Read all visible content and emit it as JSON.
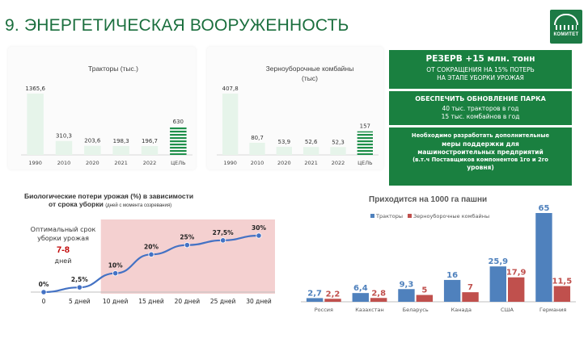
{
  "header": {
    "title": "9. ЭНЕРГЕТИЧЕСКАЯ ВООРУЖЕННОСТЬ",
    "logo_text": "КОМИТЕТ"
  },
  "side_boxes": {
    "box1": {
      "title": "РЕЗЕРВ +15 млн. тонн",
      "line1": "ОТ СОКРАЩЕНИЯ НА 15% ПОТЕРЬ",
      "line2": "НА ЭТАПЕ УБОРКИ УРОЖАЯ"
    },
    "box2": {
      "title": "ОБЕСПЕЧИТЬ ОБНОВЛЕНИЕ ПАРКА",
      "line1": "40 тыс. тракторов в год",
      "line2": "15 тыс. комбайнов в год"
    },
    "box3": {
      "line1": "Необходимо разработать дополнительные",
      "line2": "меры поддержки для",
      "line3": "машиностроительных предприятий",
      "line4": "(в.т.ч Поставщиков компонентов 1го и 2го",
      "line5": "уровня)"
    }
  },
  "chart_data": [
    {
      "type": "bar",
      "title": "Тракторы (тыс.)",
      "categories": [
        "1990",
        "2010",
        "2020",
        "2021",
        "2022",
        "ЦЕЛЬ"
      ],
      "values": [
        1365.6,
        310.3,
        203.6,
        198.3,
        196.7,
        630
      ],
      "value_labels": [
        "1365,6",
        "310,3",
        "203,6",
        "198,3",
        "196,7",
        "630"
      ],
      "bar_color": "#e6f4ea",
      "target_color": "#1e8f4a"
    },
    {
      "type": "bar",
      "title": "Зерноуборочные комбайны",
      "subtitle": "(тыс)",
      "categories": [
        "1990",
        "2010",
        "2020",
        "2021",
        "2022",
        "ЦЕЛЬ"
      ],
      "values": [
        407.8,
        80.7,
        53.9,
        52.6,
        52.3,
        157
      ],
      "value_labels": [
        "407,8",
        "80,7",
        "53,9",
        "52,6",
        "52,3",
        "157"
      ],
      "bar_color": "#e6f4ea",
      "target_color": "#1e8f4a"
    },
    {
      "type": "line",
      "title": "Биологические потери урожая (%) в зависимости",
      "title_line2": "от срока уборки",
      "title_note": "(дней с момента созревания)",
      "categories": [
        "0",
        "5 дней",
        "10 дней",
        "15 дней",
        "20 дней",
        "25 дней",
        "30 дней"
      ],
      "values": [
        0,
        2.5,
        10,
        20,
        25,
        27.5,
        30
      ],
      "value_labels": [
        "0%",
        "2,5%",
        "10%",
        "20%",
        "25%",
        "27,5%",
        "30%"
      ],
      "ylim": [
        0,
        30
      ],
      "highlight_from": "10 дней",
      "annotation": {
        "line1": "Оптимальный срок",
        "line2": "уборки урожая",
        "value": "7-8",
        "unit": "дней"
      },
      "line_color": "#4472c4",
      "highlight_color": "#f2c8c8"
    },
    {
      "type": "bar",
      "title": "Приходится на 1000 га пашни",
      "categories": [
        "Россия",
        "Казахстан",
        "Беларусь",
        "Канада",
        "США",
        "Германия"
      ],
      "series": [
        {
          "name": "Тракторы",
          "values": [
            2.7,
            6.4,
            9.3,
            16,
            25.9,
            65
          ],
          "labels": [
            "2,7",
            "6,4",
            "9,3",
            "16",
            "25,9",
            "65"
          ],
          "color": "#4f81bd"
        },
        {
          "name": "Зерноуборочные комбайны",
          "values": [
            2.2,
            2.8,
            5,
            7,
            17.9,
            11.5
          ],
          "labels": [
            "2,2",
            "2,8",
            "5",
            "7",
            "17,9",
            "11,5"
          ],
          "color": "#c0504d"
        }
      ],
      "legend": "top-left"
    }
  ]
}
